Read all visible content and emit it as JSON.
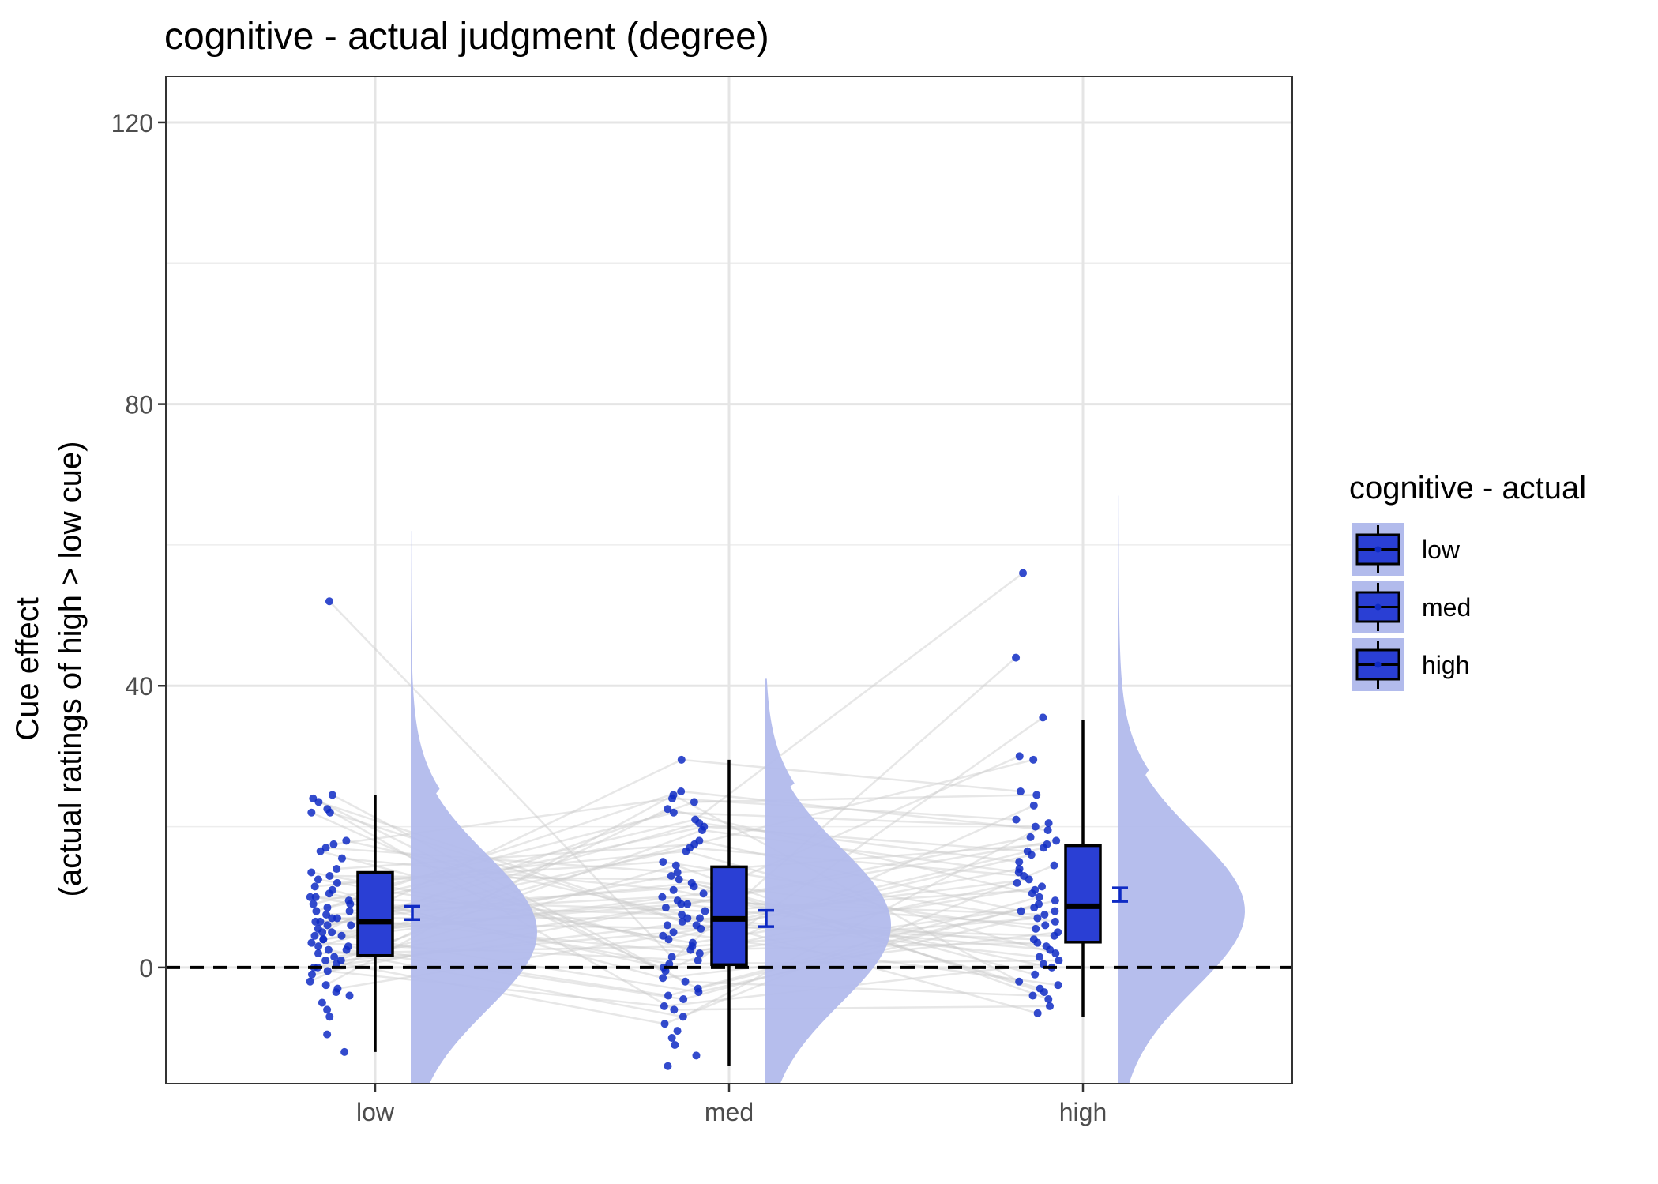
{
  "chart_data": {
    "type": "raincloud",
    "title": "cognitive  - actual judgment (degree)",
    "xlabel": "",
    "ylabel": "Cue effect\n(actual ratings of high > low cue)",
    "ylabel_lines": [
      "Cue effect",
      "(actual ratings of high > low cue)"
    ],
    "categories": [
      "low",
      "med",
      "high"
    ],
    "ylim": [
      -16.5,
      126.5
    ],
    "yticks": [
      0,
      40,
      80,
      120
    ],
    "y_minor_gridlines": [
      20,
      60,
      100
    ],
    "reference_line": 0,
    "grid": true,
    "colors": {
      "fill": "#2a3fd4",
      "point": "#0f2bc4",
      "cloud": "#b2bbec",
      "line": "#c9c9c9",
      "errorbar": "#0f2bc4"
    },
    "boxplots": [
      {
        "category": "low",
        "whisker_low": -12,
        "q1": 1.7,
        "median": 6.5,
        "q3": 13.5,
        "whisker_high": 24.5
      },
      {
        "category": "med",
        "whisker_low": -14,
        "q1": 0.4,
        "median": 6.9,
        "q3": 14.3,
        "whisker_high": 29.5
      },
      {
        "category": "high",
        "whisker_low": -7,
        "q1": 3.6,
        "median": 8.7,
        "q3": 17.3,
        "whisker_high": 35.2
      }
    ],
    "mean_se": [
      {
        "category": "low",
        "mean": 7.7,
        "lower": 6.8,
        "upper": 8.7
      },
      {
        "category": "med",
        "mean": 7.0,
        "lower": 5.8,
        "upper": 8.1
      },
      {
        "category": "high",
        "mean": 10.4,
        "lower": 9.4,
        "upper": 11.3
      }
    ],
    "density_ranges": [
      {
        "category": "low",
        "min": -16.5,
        "max": 62,
        "peak": 5
      },
      {
        "category": "med",
        "min": -16.5,
        "max": 41,
        "peak": 6
      },
      {
        "category": "high",
        "min": -16.5,
        "max": 67,
        "peak": 8
      }
    ],
    "points": {
      "low": [
        52,
        24.5,
        24,
        23.5,
        22.5,
        22,
        22,
        18,
        17.5,
        17,
        16.5,
        15.5,
        14,
        13.5,
        13,
        12.5,
        12,
        11.5,
        11,
        10.5,
        10,
        10,
        9.5,
        9,
        9,
        8.5,
        8,
        8,
        7.5,
        7,
        7,
        6.5,
        6.5,
        6,
        6,
        5.5,
        5,
        5,
        4.5,
        4.5,
        4,
        4,
        3.5,
        3,
        3,
        2.5,
        2.5,
        2,
        1.5,
        1,
        1,
        0.5,
        0,
        0,
        -0.5,
        -1,
        -2,
        -2.5,
        -3,
        -3.5,
        -4,
        -5,
        -6,
        -7,
        -9.5,
        -12
      ],
      "med": [
        29.5,
        25,
        24.5,
        24,
        23.5,
        22.5,
        22,
        21,
        20.5,
        20,
        19.5,
        18,
        17.5,
        17,
        16.5,
        15,
        14.5,
        13.5,
        13,
        12.5,
        12,
        11.5,
        11,
        10.5,
        10,
        9.5,
        9,
        9,
        8.5,
        8,
        7.5,
        7,
        7,
        6.5,
        6,
        6,
        5.5,
        5,
        4.5,
        4,
        3.5,
        3,
        2.5,
        2,
        1.5,
        1,
        0.5,
        0,
        -0.5,
        -1.5,
        -2,
        -3,
        -3.5,
        -4,
        -4.5,
        -5.5,
        -6,
        -7,
        -8,
        -9,
        -10,
        -11,
        -12.5,
        -14
      ],
      "high": [
        56,
        44,
        35.5,
        30,
        29.5,
        25,
        24.5,
        23,
        21,
        20.5,
        20,
        19.5,
        18.5,
        18,
        17.5,
        17,
        16.5,
        16,
        15,
        14.5,
        14,
        13.5,
        13,
        12.5,
        12,
        11.5,
        11,
        10.5,
        10,
        9.5,
        9,
        8.5,
        8,
        8,
        7.5,
        7,
        6.5,
        6,
        5.5,
        5,
        4.5,
        4,
        3.5,
        3,
        2.5,
        2,
        1.5,
        1,
        0.5,
        0,
        -1,
        -2,
        -2.5,
        -3,
        -3.5,
        -4,
        -4.5,
        -5.5,
        -6.5
      ]
    },
    "legend": {
      "title": "cognitive  - actual",
      "position": "right",
      "entries": [
        "low",
        "med",
        "high"
      ]
    }
  }
}
